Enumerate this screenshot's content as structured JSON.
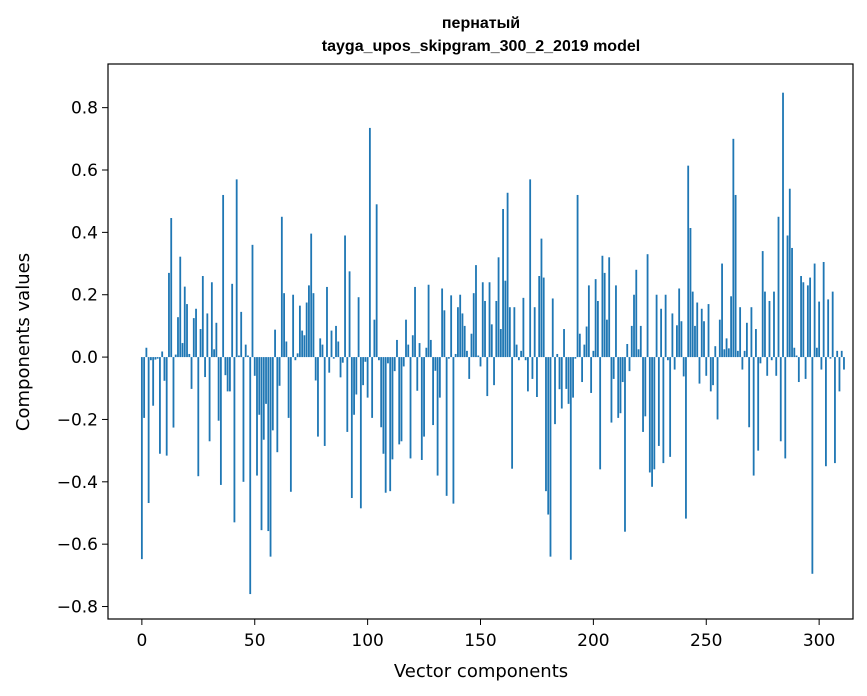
{
  "chart_data": {
    "type": "bar",
    "title": "пернатый",
    "subtitle": "tayga_upos_skipgram_300_2_2019 model",
    "xlabel": "Vector components",
    "ylabel": "Components values",
    "xlim": [
      -15,
      315
    ],
    "ylim": [
      -0.84,
      0.94
    ],
    "xticks": [
      0,
      50,
      100,
      150,
      200,
      250,
      300
    ],
    "xtick_labels": [
      "0",
      "50",
      "100",
      "150",
      "200",
      "250",
      "300"
    ],
    "yticks": [
      -0.8,
      -0.6,
      -0.4,
      -0.2,
      0.0,
      0.2,
      0.4,
      0.6,
      0.8
    ],
    "ytick_labels": [
      "−0.8",
      "−0.6",
      "−0.4",
      "−0.2",
      "0.0",
      "0.2",
      "0.4",
      "0.6",
      "0.8"
    ],
    "bar_color": "#1f77b4",
    "values": [
      -0.648,
      -0.195,
      0.03,
      -0.468,
      -0.01,
      -0.156,
      -0.008,
      -0.005,
      -0.31,
      0.018,
      -0.076,
      -0.316,
      0.27,
      0.446,
      -0.226,
      0.008,
      0.128,
      0.322,
      0.045,
      0.226,
      0.17,
      0.01,
      -0.102,
      0.125,
      0.155,
      -0.382,
      0.09,
      0.26,
      -0.064,
      0.14,
      -0.27,
      0.24,
      0.025,
      0.11,
      -0.204,
      -0.41,
      0.52,
      -0.058,
      -0.11,
      -0.11,
      0.235,
      -0.53,
      0.57,
      0.005,
      0.145,
      -0.4,
      0.04,
      0.005,
      -0.76,
      0.36,
      -0.06,
      -0.38,
      -0.185,
      -0.555,
      -0.265,
      -0.15,
      -0.558,
      -0.64,
      -0.235,
      0.088,
      -0.305,
      -0.092,
      0.45,
      0.205,
      0.05,
      -0.195,
      -0.432,
      0.2,
      -0.01,
      0.012,
      0.165,
      0.085,
      0.07,
      0.175,
      0.23,
      0.396,
      0.205,
      -0.075,
      -0.255,
      0.06,
      0.04,
      -0.285,
      0.225,
      -0.05,
      0.085,
      -0.005,
      0.1,
      0.05,
      -0.065,
      -0.018,
      0.39,
      -0.24,
      0.275,
      -0.452,
      -0.185,
      -0.12,
      0.192,
      -0.485,
      -0.09,
      -0.015,
      -0.13,
      0.735,
      -0.195,
      0.12,
      0.49,
      -0.01,
      -0.225,
      -0.31,
      -0.435,
      -0.02,
      -0.43,
      -0.328,
      -0.045,
      0.055,
      -0.28,
      -0.27,
      -0.03,
      0.12,
      0.04,
      -0.325,
      0.07,
      0.225,
      -0.108,
      0.045,
      -0.33,
      -0.255,
      0.03,
      0.232,
      0.055,
      -0.218,
      -0.044,
      -0.38,
      -0.13,
      0.22,
      0.15,
      -0.445,
      -0.005,
      0.198,
      -0.47,
      0.01,
      0.16,
      0.2,
      0.14,
      0.1,
      0.02,
      -0.07,
      0.075,
      0.205,
      0.295,
      0.005,
      -0.03,
      0.24,
      0.18,
      -0.125,
      0.24,
      0.105,
      -0.09,
      0.18,
      0.32,
      0.09,
      0.475,
      0.245,
      0.527,
      0.16,
      -0.358,
      0.16,
      0.04,
      -0.01,
      0.02,
      0.19,
      -0.01,
      -0.11,
      0.57,
      -0.07,
      0.16,
      -0.128,
      0.26,
      0.38,
      0.255,
      -0.43,
      -0.505,
      -0.64,
      0.188,
      -0.215,
      0.01,
      -0.103,
      -0.165,
      0.09,
      -0.102,
      -0.15,
      -0.65,
      -0.13,
      -0.005,
      0.52,
      0.075,
      -0.08,
      0.04,
      0.098,
      0.23,
      -0.115,
      0.02,
      0.25,
      0.18,
      -0.36,
      0.325,
      0.27,
      0.12,
      0.32,
      -0.21,
      -0.07,
      0.23,
      -0.195,
      -0.18,
      -0.08,
      -0.56,
      0.042,
      -0.045,
      0.1,
      0.2,
      0.28,
      0.025,
      0.1,
      -0.24,
      -0.19,
      0.33,
      -0.37,
      -0.416,
      -0.36,
      0.2,
      -0.285,
      0.155,
      -0.34,
      0.2,
      -0.01,
      -0.32,
      0.14,
      -0.04,
      0.102,
      0.22,
      0.115,
      -0.062,
      -0.518,
      0.614,
      0.414,
      0.21,
      0.1,
      0.175,
      -0.085,
      0.155,
      0.115,
      -0.06,
      0.17,
      -0.11,
      -0.09,
      0.035,
      -0.2,
      0.12,
      0.3,
      0.025,
      0.06,
      0.028,
      0.195,
      0.7,
      0.52,
      0.02,
      0.16,
      -0.04,
      0.02,
      0.11,
      -0.225,
      0.16,
      -0.38,
      0.09,
      -0.3,
      -0.02,
      0.34,
      0.21,
      -0.06,
      0.18,
      -0.01,
      0.21,
      -0.06,
      0.45,
      -0.27,
      0.848,
      -0.325,
      0.39,
      0.54,
      0.35,
      0.03,
      0.005,
      -0.08,
      0.26,
      0.24,
      -0.07,
      0.23,
      0.255,
      -0.695,
      0.3,
      0.03,
      0.178,
      -0.04,
      0.305,
      -0.35,
      0.185,
      -0.005,
      0.21,
      -0.34,
      0.02,
      -0.11,
      0.02,
      -0.04
    ]
  }
}
